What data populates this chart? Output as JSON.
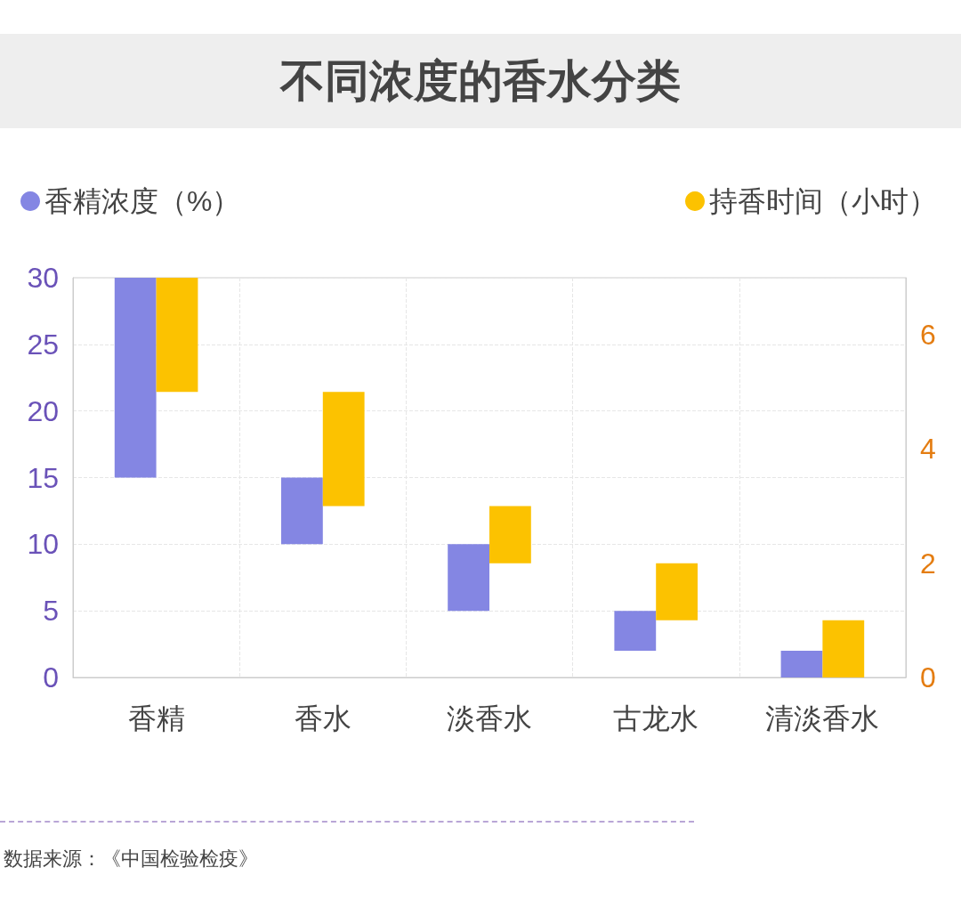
{
  "chart_data": {
    "type": "bar",
    "title": "不同浓度的香水分类",
    "categories": [
      "香精",
      "香水",
      "淡香水",
      "古龙水",
      "清淡香水"
    ],
    "series": [
      {
        "name": "香精浓度（%）",
        "color": "#8486e3",
        "values": [
          15,
          5,
          5,
          3,
          2
        ],
        "base": [
          15,
          10,
          5,
          2,
          0
        ]
      },
      {
        "name": "持香时间（小时）",
        "color": "#fcc200",
        "axis": "y2",
        "values": [
          2,
          2,
          1,
          1,
          1
        ],
        "base": [
          5,
          3,
          2,
          1,
          0
        ]
      }
    ],
    "ylim": [
      0,
      30
    ],
    "yticks": [
      0,
      5,
      10,
      15,
      20,
      25,
      30
    ],
    "y2lim": [
      0,
      7
    ],
    "y2ticks": [
      0,
      2,
      4,
      6
    ],
    "grid": true,
    "legend": "top",
    "annotations": [
      "数据来源：《中国检验检疫》"
    ]
  }
}
